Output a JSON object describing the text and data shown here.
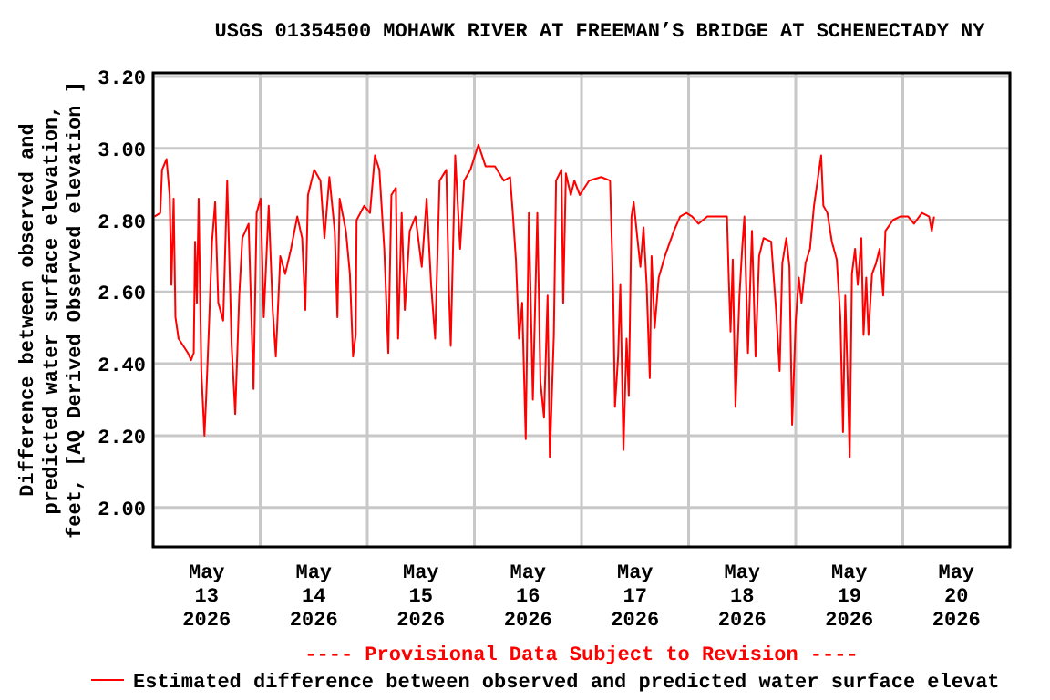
{
  "chart_data": {
    "type": "line",
    "title": "USGS 01354500 MOHAWK RIVER AT FREEMAN’S BRIDGE AT SCHENECTADY NY",
    "ylabel": "Difference between observed and\npredicted water surface elevation,\nfeet, [AQ Derived Observed elevation ]",
    "annotations": [
      "---- Provisional Data Subject to Revision ----"
    ],
    "xlim": [
      "2026-05-13",
      "2026-05-21"
    ],
    "xticks": [
      {
        "value": "2026-05-13",
        "label": null
      },
      {
        "value": "2026-05-13T12:00",
        "label": "May\n13\n2026"
      },
      {
        "value": "2026-05-14",
        "label": null
      },
      {
        "value": "2026-05-14T12:00",
        "label": "May\n14\n2026"
      },
      {
        "value": "2026-05-15",
        "label": null
      },
      {
        "value": "2026-05-15T12:00",
        "label": "May\n15\n2026"
      },
      {
        "value": "2026-05-16",
        "label": null
      },
      {
        "value": "2026-05-16T12:00",
        "label": "May\n16\n2026"
      },
      {
        "value": "2026-05-17",
        "label": null
      },
      {
        "value": "2026-05-17T12:00",
        "label": "May\n17\n2026"
      },
      {
        "value": "2026-05-18",
        "label": null
      },
      {
        "value": "2026-05-18T12:00",
        "label": "May\n18\n2026"
      },
      {
        "value": "2026-05-19",
        "label": null
      },
      {
        "value": "2026-05-19T12:00",
        "label": "May\n19\n2026"
      },
      {
        "value": "2026-05-20",
        "label": null
      },
      {
        "value": "2026-05-20T12:00",
        "label": "May\n20\n2026"
      },
      {
        "value": "2026-05-21",
        "label": null
      }
    ],
    "ylim": [
      1.89,
      3.21
    ],
    "yticks": [
      {
        "value": 2,
        "label": "2.00"
      },
      {
        "value": 2.2,
        "label": "2.20"
      },
      {
        "value": 2.4,
        "label": "2.40"
      },
      {
        "value": 2.6,
        "label": "2.60"
      },
      {
        "value": 2.8,
        "label": "2.80"
      },
      {
        "value": 3,
        "label": "3.00"
      },
      {
        "value": 3.2,
        "label": "3.20"
      }
    ],
    "grid": true,
    "legend": "bottom",
    "marker": "none",
    "line_style": "solid",
    "series": [
      {
        "name": "Estimated difference between observed and predicted water surface elevat",
        "color": "#ff0000",
        "x": [
          "2026-05-13T00:18",
          "2026-05-13T01:36",
          "2026-05-13T02:00",
          "2026-05-13T03:00",
          "2026-05-13T03:42",
          "2026-05-13T04:06",
          "2026-05-13T04:36",
          "2026-05-13T05:00",
          "2026-05-13T05:42",
          "2026-05-13T07:48",
          "2026-05-13T08:30",
          "2026-05-13T09:06",
          "2026-05-13T09:24",
          "2026-05-13T09:48",
          "2026-05-13T10:12",
          "2026-05-13T10:48",
          "2026-05-13T11:30",
          "2026-05-13T11:54",
          "2026-05-13T12:30",
          "2026-05-13T13:12",
          "2026-05-13T13:54",
          "2026-05-13T14:36",
          "2026-05-13T15:42",
          "2026-05-13T16:36",
          "2026-05-13T17:36",
          "2026-05-13T18:24",
          "2026-05-13T19:18",
          "2026-05-13T20:00",
          "2026-05-13T21:24",
          "2026-05-13T22:30",
          "2026-05-13T23:12",
          "2026-05-14T00:06",
          "2026-05-14T00:48",
          "2026-05-14T01:54",
          "2026-05-14T02:48",
          "2026-05-14T03:30",
          "2026-05-14T04:30",
          "2026-05-14T05:36",
          "2026-05-14T06:54",
          "2026-05-14T08:18",
          "2026-05-14T09:24",
          "2026-05-14T10:06",
          "2026-05-14T10:42",
          "2026-05-14T12:06",
          "2026-05-14T13:30",
          "2026-05-14T14:24",
          "2026-05-14T15:30",
          "2026-05-14T16:42",
          "2026-05-14T17:18",
          "2026-05-14T17:48",
          "2026-05-14T19:12",
          "2026-05-14T20:06",
          "2026-05-14T20:48",
          "2026-05-14T21:24",
          "2026-05-14T21:36",
          "2026-05-14T23:18",
          "2026-05-15T00:36",
          "2026-05-15T01:42",
          "2026-05-15T02:42",
          "2026-05-15T03:48",
          "2026-05-15T04:42",
          "2026-05-15T05:24",
          "2026-05-15T06:24",
          "2026-05-15T06:54",
          "2026-05-15T07:42",
          "2026-05-15T08:24",
          "2026-05-15T09:30",
          "2026-05-15T10:48",
          "2026-05-15T12:12",
          "2026-05-15T13:18",
          "2026-05-15T14:18",
          "2026-05-15T15:12",
          "2026-05-15T16:12",
          "2026-05-15T17:42",
          "2026-05-15T18:18",
          "2026-05-15T18:42",
          "2026-05-15T19:42",
          "2026-05-15T20:48",
          "2026-05-15T21:42",
          "2026-05-15T23:06",
          "2026-05-16T00:54",
          "2026-05-16T02:30",
          "2026-05-16T04:36",
          "2026-05-16T06:36",
          "2026-05-16T08:00",
          "2026-05-16T08:36",
          "2026-05-16T09:18",
          "2026-05-16T10:00",
          "2026-05-16T10:42",
          "2026-05-16T11:30",
          "2026-05-16T12:12",
          "2026-05-16T13:06",
          "2026-05-16T14:06",
          "2026-05-16T14:48",
          "2026-05-16T15:36",
          "2026-05-16T16:24",
          "2026-05-16T16:54",
          "2026-05-16T17:48",
          "2026-05-16T18:18",
          "2026-05-16T19:30",
          "2026-05-16T19:54",
          "2026-05-16T20:30",
          "2026-05-16T21:36",
          "2026-05-16T22:24",
          "2026-05-16T23:36",
          "2026-05-17T01:42",
          "2026-05-17T04:24",
          "2026-05-17T06:24",
          "2026-05-17T07:06",
          "2026-05-17T07:30",
          "2026-05-17T08:12",
          "2026-05-17T08:42",
          "2026-05-17T09:24",
          "2026-05-17T10:06",
          "2026-05-17T10:36",
          "2026-05-17T11:12",
          "2026-05-17T11:42",
          "2026-05-17T12:36",
          "2026-05-17T13:12",
          "2026-05-17T13:54",
          "2026-05-17T14:36",
          "2026-05-17T15:18",
          "2026-05-17T15:42",
          "2026-05-17T16:24",
          "2026-05-17T17:18",
          "2026-05-17T18:42",
          "2026-05-17T20:42",
          "2026-05-17T22:06",
          "2026-05-17T23:30",
          "2026-05-18T00:48",
          "2026-05-18T02:12",
          "2026-05-18T04:12",
          "2026-05-18T06:18",
          "2026-05-18T08:36",
          "2026-05-18T09:00",
          "2026-05-18T09:24",
          "2026-05-18T09:54",
          "2026-05-18T10:30",
          "2026-05-18T11:24",
          "2026-05-18T12:00",
          "2026-05-18T12:30",
          "2026-05-18T13:18",
          "2026-05-18T14:12",
          "2026-05-18T15:00",
          "2026-05-18T15:48",
          "2026-05-18T16:48",
          "2026-05-18T18:30",
          "2026-05-18T19:36",
          "2026-05-18T20:24",
          "2026-05-18T21:00",
          "2026-05-18T21:54",
          "2026-05-18T22:36",
          "2026-05-18T23:12",
          "2026-05-19T00:00",
          "2026-05-19T00:42",
          "2026-05-19T01:18",
          "2026-05-19T02:12",
          "2026-05-19T03:12",
          "2026-05-19T04:06",
          "2026-05-19T04:54",
          "2026-05-19T05:42",
          "2026-05-19T06:12",
          "2026-05-19T07:06",
          "2026-05-19T08:06",
          "2026-05-19T09:12",
          "2026-05-19T10:00",
          "2026-05-19T10:36",
          "2026-05-19T11:06",
          "2026-05-19T11:30",
          "2026-05-19T12:06",
          "2026-05-19T12:36",
          "2026-05-19T13:18",
          "2026-05-19T13:54",
          "2026-05-19T14:42",
          "2026-05-19T15:12",
          "2026-05-19T15:48",
          "2026-05-19T16:18",
          "2026-05-19T17:06",
          "2026-05-19T18:00",
          "2026-05-19T18:48",
          "2026-05-19T19:36",
          "2026-05-19T20:06",
          "2026-05-19T21:48",
          "2026-05-19T23:24",
          "2026-05-20T01:12",
          "2026-05-20T02:30",
          "2026-05-20T04:18",
          "2026-05-20T05:54",
          "2026-05-20T06:30",
          "2026-05-20T07:00"
        ],
        "values": [
          2.81,
          2.82,
          2.94,
          2.97,
          2.87,
          2.62,
          2.86,
          2.53,
          2.47,
          2.43,
          2.41,
          2.43,
          2.74,
          2.57,
          2.86,
          2.38,
          2.2,
          2.31,
          2.5,
          2.74,
          2.85,
          2.57,
          2.52,
          2.91,
          2.45,
          2.26,
          2.59,
          2.75,
          2.79,
          2.33,
          2.82,
          2.86,
          2.53,
          2.84,
          2.55,
          2.42,
          2.7,
          2.65,
          2.72,
          2.81,
          2.75,
          2.55,
          2.87,
          2.94,
          2.91,
          2.75,
          2.92,
          2.77,
          2.53,
          2.86,
          2.77,
          2.65,
          2.42,
          2.48,
          2.8,
          2.84,
          2.82,
          2.98,
          2.94,
          2.72,
          2.43,
          2.87,
          2.89,
          2.47,
          2.82,
          2.55,
          2.77,
          2.81,
          2.67,
          2.86,
          2.62,
          2.47,
          2.91,
          2.94,
          2.6,
          2.45,
          2.98,
          2.72,
          2.91,
          2.94,
          3.01,
          2.95,
          2.95,
          2.91,
          2.92,
          2.82,
          2.69,
          2.47,
          2.57,
          2.19,
          2.82,
          2.3,
          2.82,
          2.35,
          2.25,
          2.59,
          2.14,
          2.48,
          2.91,
          2.94,
          2.57,
          2.93,
          2.87,
          2.91,
          2.87,
          2.91,
          2.92,
          2.91,
          2.6,
          2.28,
          2.42,
          2.62,
          2.16,
          2.47,
          2.31,
          2.81,
          2.85,
          2.74,
          2.67,
          2.78,
          2.62,
          2.36,
          2.7,
          2.5,
          2.64,
          2.7,
          2.77,
          2.81,
          2.82,
          2.81,
          2.79,
          2.81,
          2.81,
          2.81,
          2.64,
          2.49,
          2.69,
          2.28,
          2.59,
          2.72,
          2.81,
          2.43,
          2.77,
          2.42,
          2.7,
          2.75,
          2.74,
          2.55,
          2.38,
          2.68,
          2.75,
          2.67,
          2.23,
          2.52,
          2.64,
          2.57,
          2.68,
          2.72,
          2.84,
          2.91,
          2.98,
          2.84,
          2.82,
          2.74,
          2.69,
          2.53,
          2.21,
          2.59,
          2.42,
          2.14,
          2.65,
          2.72,
          2.62,
          2.75,
          2.48,
          2.64,
          2.48,
          2.65,
          2.68,
          2.72,
          2.59,
          2.77,
          2.8,
          2.81,
          2.81,
          2.79,
          2.82,
          2.81,
          2.77,
          2.81
        ]
      }
    ]
  }
}
